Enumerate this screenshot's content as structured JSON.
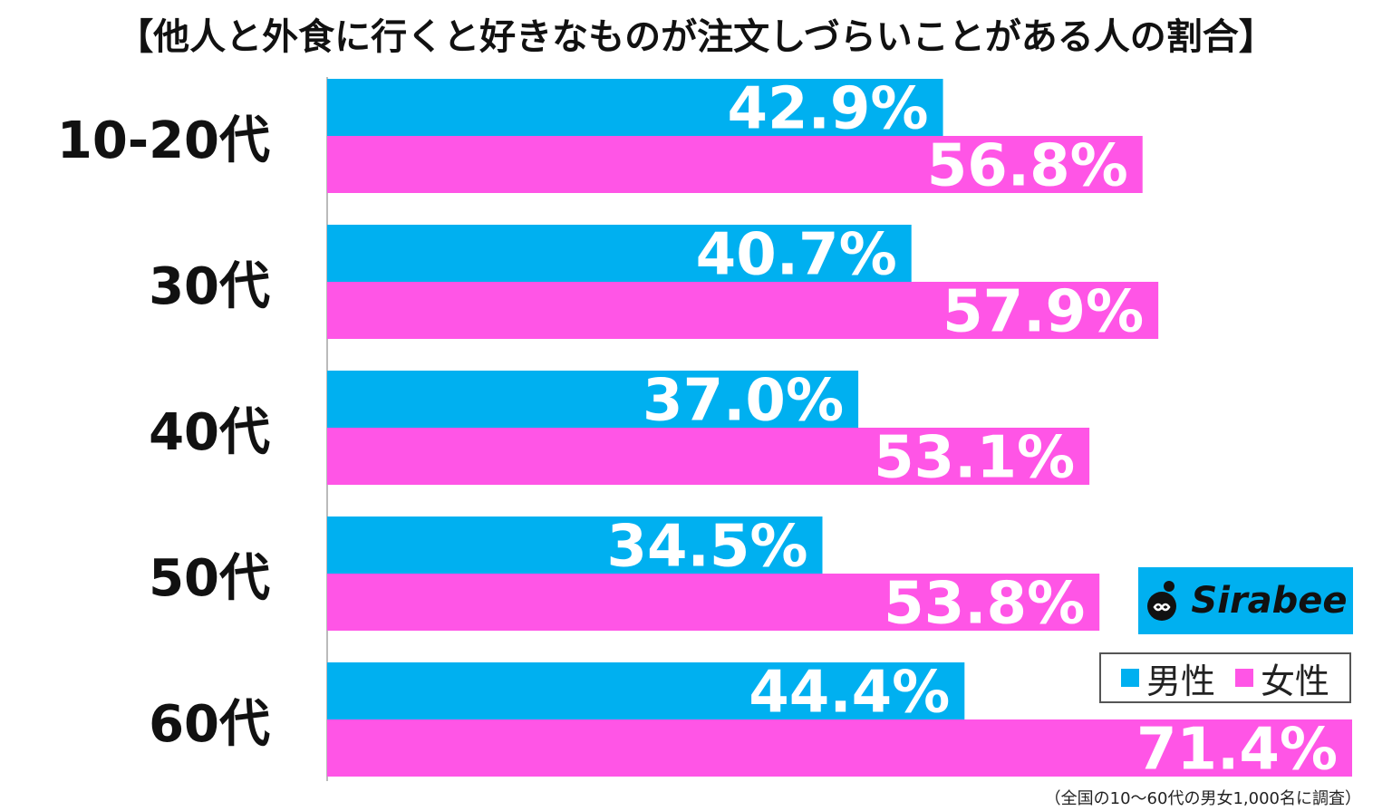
{
  "title": "【他人と外食に行くと好きなものが注文しづらいことがある人の割合】",
  "footnote": "（全国の10～60代の男女1,000名に調査）",
  "logo": {
    "text": "Sirabee"
  },
  "colors": {
    "male": "#00b0f0",
    "female": "#ff55e6",
    "label": "#ffffff",
    "category": "#111111",
    "axis": "#bbbbbb"
  },
  "chart_data": {
    "type": "bar",
    "orientation": "horizontal",
    "categories": [
      "10-20代",
      "30代",
      "40代",
      "50代",
      "60代"
    ],
    "series": [
      {
        "name": "男性",
        "values": [
          42.9,
          40.7,
          37.0,
          34.5,
          44.4
        ],
        "labels": [
          "42.9%",
          "40.7%",
          "37.0%",
          "34.5%",
          "44.4%"
        ]
      },
      {
        "name": "女性",
        "values": [
          56.8,
          57.9,
          53.1,
          53.8,
          71.4
        ],
        "labels": [
          "56.8%",
          "57.9%",
          "53.1%",
          "53.8%",
          "71.4%"
        ]
      }
    ],
    "xlim": [
      0,
      71.4
    ],
    "grid": false,
    "legend": "bottom-right"
  }
}
